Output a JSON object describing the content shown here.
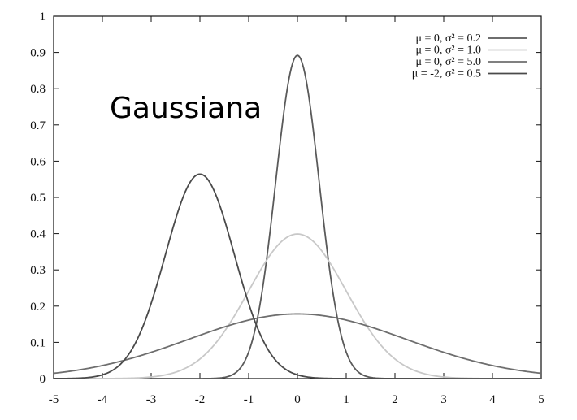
{
  "chart_data": {
    "type": "line",
    "title": "",
    "overlay_text": "Gaussiana",
    "xlabel": "",
    "ylabel": "",
    "xlim": [
      -5,
      5
    ],
    "ylim": [
      0,
      1
    ],
    "x_ticks": [
      "-5",
      "-4",
      "-3",
      "-2",
      "-1",
      "0",
      "1",
      "2",
      "3",
      "4",
      "5"
    ],
    "y_ticks": [
      "0",
      "0.1",
      "0.2",
      "0.3",
      "0.4",
      "0.5",
      "0.6",
      "0.7",
      "0.8",
      "0.9",
      "1"
    ],
    "grid": false,
    "legend_position": "top-right",
    "series": [
      {
        "name": "μ = 0, σ² = 0.2",
        "mu": 0,
        "variance": 0.2,
        "color": "#5a5a5a"
      },
      {
        "name": "μ = 0, σ² = 1.0",
        "mu": 0,
        "variance": 1.0,
        "color": "#c8c8c8"
      },
      {
        "name": "μ = 0, σ² = 5.0",
        "mu": 0,
        "variance": 5.0,
        "color": "#6e6e6e"
      },
      {
        "name": "μ = -2, σ² = 0.5",
        "mu": -2,
        "variance": 0.5,
        "color": "#4a4a4a"
      }
    ]
  }
}
